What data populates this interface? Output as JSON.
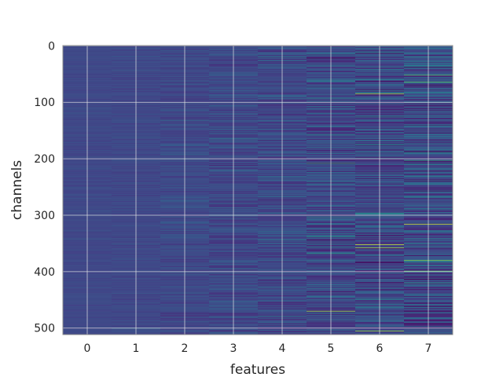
{
  "chart_data": {
    "type": "heatmap",
    "title": "",
    "xlabel": "features",
    "ylabel": "channels",
    "x_ticks": [
      "0",
      "1",
      "2",
      "3",
      "4",
      "5",
      "6",
      "7"
    ],
    "y_ticks": [
      "0",
      "100",
      "200",
      "300",
      "400",
      "500"
    ],
    "x_range": [
      -0.5,
      7.5
    ],
    "y_range": [
      -0.5,
      511.5
    ],
    "y_inverted": true,
    "n_features": 8,
    "n_channels": 512,
    "grid": true,
    "colormap": "viridis",
    "column_variation": [
      0.06,
      0.08,
      0.13,
      0.18,
      0.22,
      0.3,
      0.34,
      0.38
    ],
    "highlights": [
      {
        "feature": 5,
        "channel": 208,
        "value": 0.75
      },
      {
        "feature": 5,
        "channel": 470,
        "value": 0.9
      },
      {
        "feature": 6,
        "channel": 85,
        "value": 0.9
      },
      {
        "feature": 6,
        "channel": 352,
        "value": 0.95
      },
      {
        "feature": 6,
        "channel": 358,
        "value": 0.9
      },
      {
        "feature": 6,
        "channel": 505,
        "value": 0.9
      },
      {
        "feature": 7,
        "channel": 52,
        "value": 0.8
      },
      {
        "feature": 7,
        "channel": 64,
        "value": 0.8
      },
      {
        "feature": 7,
        "channel": 203,
        "value": 0.7
      },
      {
        "feature": 7,
        "channel": 316,
        "value": 0.95
      },
      {
        "feature": 7,
        "channel": 380,
        "value": 0.85
      }
    ],
    "colors": {
      "low": "#440154",
      "base": "#3b528b",
      "mid": "#21918c",
      "high": "#5ec962",
      "max": "#fde725",
      "grid": "#e6e6e6",
      "frame": "#8c8c8c"
    }
  }
}
